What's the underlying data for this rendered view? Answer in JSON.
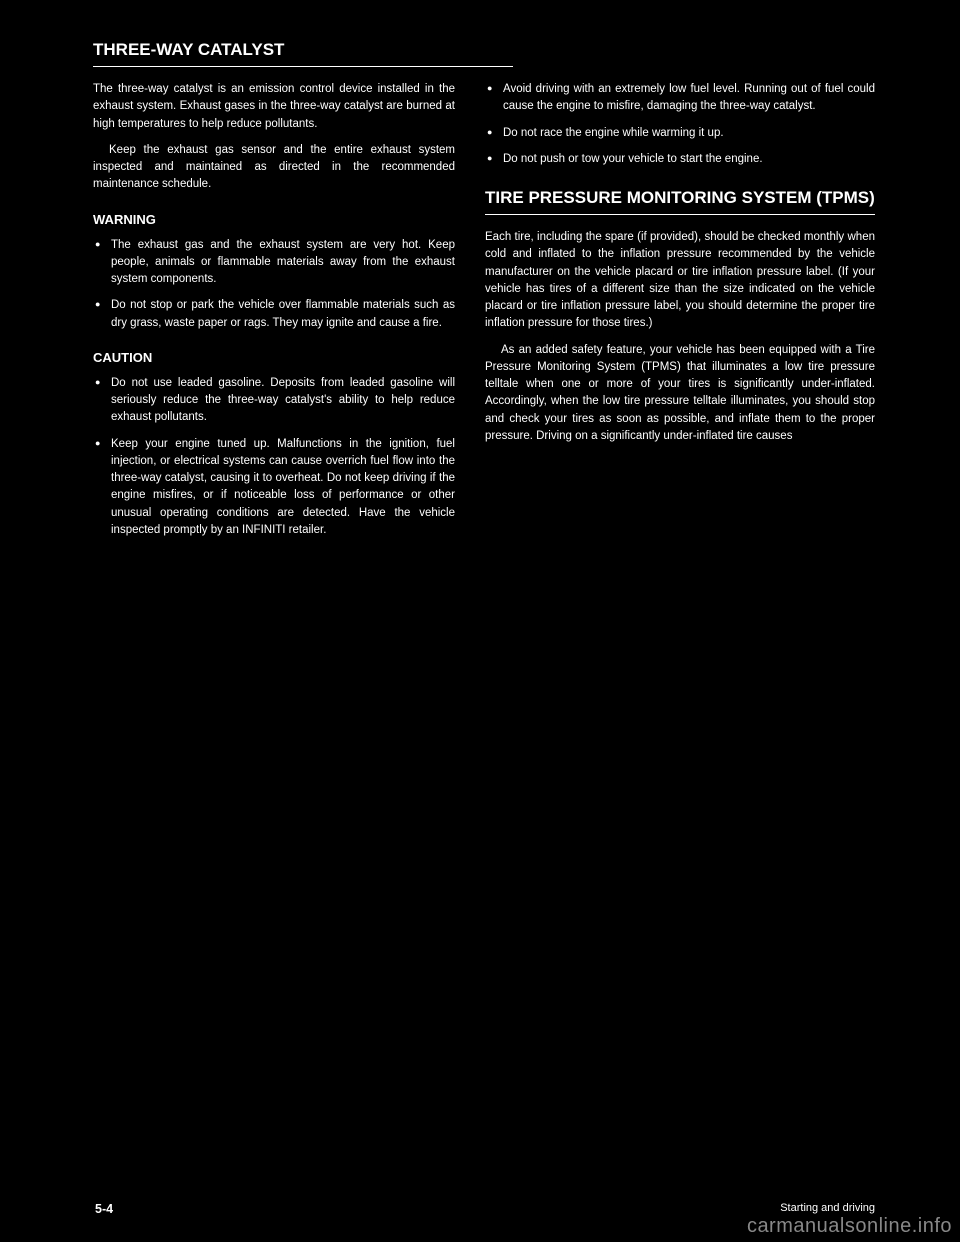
{
  "section1": {
    "heading": "THREE-WAY CATALYST",
    "col_left": [
      "The three-way catalyst is an emission control device installed in the exhaust system. Exhaust gases in the three-way catalyst are burned at high temperatures to help reduce pollutants.",
      "Keep the exhaust gas sensor and the entire exhaust system inspected and maintained as directed in the recommended maintenance schedule."
    ],
    "warning_heading": "WARNING",
    "warning_bullets": [
      "The exhaust gas and the exhaust system are very hot. Keep people, animals or flammable materials away from the exhaust system components.",
      "Do not stop or park the vehicle over flammable materials such as dry grass, waste paper or rags. They may ignite and cause a fire."
    ],
    "caution_heading": "CAUTION",
    "caution_bullets": [
      "Do not use leaded gasoline. Deposits from leaded gasoline will seriously reduce the three-way catalyst's ability to help reduce exhaust pollutants.",
      "Keep your engine tuned up. Malfunctions in the ignition, fuel injection, or electrical systems can cause overrich fuel flow into the three-way catalyst, causing it to overheat. Do not keep driving if the engine misfires, or if noticeable loss of performance or other unusual operating conditions are detected. Have the vehicle inspected promptly by an INFINITI retailer."
    ],
    "col_right_bullets": [
      "Avoid driving with an extremely low fuel level. Running out of fuel could cause the engine to misfire, damaging the three-way catalyst.",
      "Do not race the engine while warming it up.",
      "Do not push or tow your vehicle to start the engine."
    ]
  },
  "section2": {
    "heading": "TIRE PRESSURE MONITORING SYSTEM (TPMS)",
    "paragraphs": [
      "Each tire, including the spare (if provided), should be checked monthly when cold and inflated to the inflation pressure recommended by the vehicle manufacturer on the vehicle placard or tire inflation pressure label. (If your vehicle has tires of a different size than the size indicated on the vehicle placard or tire inflation pressure label, you should determine the proper tire inflation pressure for those tires.)",
      "As an added safety feature, your vehicle has been equipped with a Tire Pressure Monitoring System (TPMS) that illuminates a low tire pressure telltale when one or more of your tires is significantly under-inflated. Accordingly, when the low tire pressure telltale illuminates, you should stop and check your tires as soon as possible, and inflate them to the proper pressure. Driving on a significantly under-inflated tire causes"
    ]
  },
  "footer": {
    "left": "5-4",
    "right": "Starting and driving"
  },
  "watermark": "carmanualsonline.info"
}
